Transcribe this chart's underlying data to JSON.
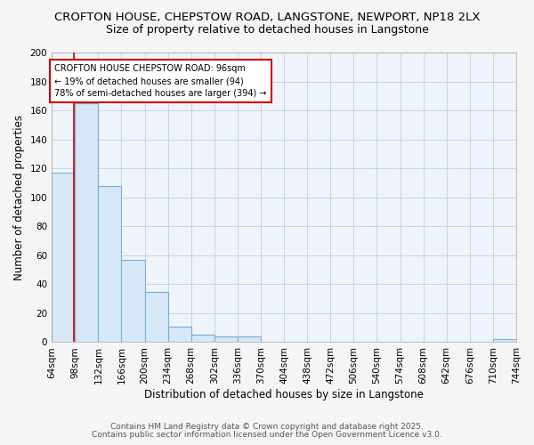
{
  "title1": "CROFTON HOUSE, CHEPSTOW ROAD, LANGSTONE, NEWPORT, NP18 2LX",
  "title2": "Size of property relative to detached houses in Langstone",
  "xlabel": "Distribution of detached houses by size in Langstone",
  "ylabel": "Number of detached properties",
  "bin_edges": [
    64,
    98,
    132,
    166,
    200,
    234,
    268,
    302,
    336,
    370,
    404,
    438,
    472,
    506,
    540,
    574,
    608,
    642,
    676,
    710,
    744
  ],
  "counts": [
    117,
    165,
    108,
    57,
    35,
    11,
    5,
    4,
    4,
    0,
    0,
    0,
    0,
    0,
    0,
    0,
    0,
    0,
    0,
    2
  ],
  "bar_color": "#d6e8f7",
  "bar_edge_color": "#7aaed4",
  "property_sqm": 96,
  "red_line_color": "#cc0000",
  "annotation_line1": "CROFTON HOUSE CHEPSTOW ROAD: 96sqm",
  "annotation_line2": "← 19% of detached houses are smaller (94)",
  "annotation_line3": "78% of semi-detached houses are larger (394) →",
  "annotation_box_color": "#ffffff",
  "annotation_border_color": "#cc0000",
  "ylim": [
    0,
    200
  ],
  "yticks": [
    0,
    20,
    40,
    60,
    80,
    100,
    120,
    140,
    160,
    180,
    200
  ],
  "footnote1": "Contains HM Land Registry data © Crown copyright and database right 2025.",
  "footnote2": "Contains public sector information licensed under the Open Government Licence v3.0.",
  "background_color": "#f5f5f5",
  "plot_bg_color": "#eef4fa",
  "grid_color": "#c0cfe0",
  "title_fontsize": 9.5,
  "subtitle_fontsize": 9,
  "axis_label_fontsize": 8.5,
  "tick_fontsize": 7.5,
  "annotation_fontsize": 7,
  "footnote_fontsize": 6.5
}
